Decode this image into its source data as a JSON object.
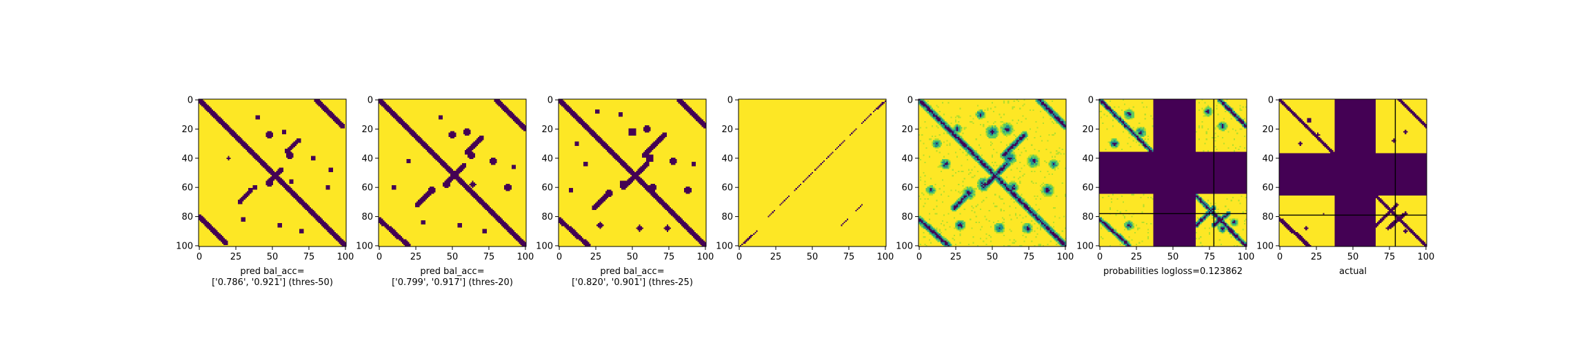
{
  "colors": {
    "dark": "#440154",
    "teal": "#21918c",
    "green": "#5ec962",
    "light_green": "#b5de2b",
    "yellow": "#fde725",
    "axis": "#000000"
  },
  "chart_data": [
    {
      "type": "heatmap",
      "id": "pred-thres-50",
      "rendering": "binary-mask",
      "xlabel": "pred bal_acc=\n['0.786', '0.921'] (thres-50)",
      "xlim": [
        0,
        101
      ],
      "ylim": [
        101,
        0
      ],
      "xticks": [
        0,
        25,
        50,
        75,
        100
      ],
      "yticks": [
        0,
        20,
        40,
        60,
        80,
        100
      ],
      "colormap": "viridis",
      "features": {
        "diagonal_band_width": 1.6,
        "anti_diagonal_segments": [
          [
            0,
            80,
            18,
            98
          ],
          [
            80,
            0,
            98,
            18
          ],
          [
            48,
            56,
            56,
            48
          ],
          [
            60,
            35,
            68,
            28
          ],
          [
            35,
            62,
            28,
            70
          ]
        ],
        "blobs": [
          [
            48,
            24,
            3
          ],
          [
            58,
            22,
            2.5
          ],
          [
            62,
            38,
            3
          ],
          [
            78,
            40,
            2.5
          ],
          [
            48,
            57,
            3
          ],
          [
            38,
            60,
            2.5
          ],
          [
            63,
            56,
            2.2
          ],
          [
            88,
            60,
            2.5
          ],
          [
            30,
            82,
            2
          ],
          [
            55,
            86,
            2
          ],
          [
            70,
            90,
            2
          ],
          [
            20,
            40,
            1.8
          ],
          [
            40,
            12,
            2
          ],
          [
            90,
            48,
            2
          ]
        ],
        "seed": 11
      }
    },
    {
      "type": "heatmap",
      "id": "pred-thres-20",
      "rendering": "binary-mask",
      "xlabel": "pred bal_acc=\n['0.799', '0.917'] (thres-20)",
      "xlim": [
        0,
        101
      ],
      "ylim": [
        101,
        0
      ],
      "xticks": [
        0,
        25,
        50,
        75,
        100
      ],
      "yticks": [
        0,
        20,
        40,
        60,
        80,
        100
      ],
      "colormap": "viridis",
      "features": {
        "diagonal_band_width": 1.8,
        "anti_diagonal_segments": [
          [
            0,
            82,
            20,
            100
          ],
          [
            80,
            0,
            100,
            20
          ],
          [
            45,
            58,
            58,
            45
          ],
          [
            60,
            36,
            70,
            26
          ],
          [
            34,
            64,
            26,
            72
          ]
        ],
        "blobs": [
          [
            50,
            24,
            3.5
          ],
          [
            60,
            22,
            3
          ],
          [
            63,
            38,
            3.5
          ],
          [
            78,
            42,
            3
          ],
          [
            46,
            58,
            3.5
          ],
          [
            36,
            62,
            3
          ],
          [
            64,
            58,
            2.8
          ],
          [
            88,
            60,
            3
          ],
          [
            30,
            84,
            2.5
          ],
          [
            55,
            86,
            2.5
          ],
          [
            72,
            90,
            2.5
          ],
          [
            20,
            42,
            2.2
          ],
          [
            42,
            12,
            2.4
          ],
          [
            92,
            46,
            2.4
          ],
          [
            10,
            60,
            2
          ]
        ],
        "seed": 23
      }
    },
    {
      "type": "heatmap",
      "id": "pred-thres-25",
      "rendering": "binary-mask",
      "xlabel": "pred bal_acc=\n['0.820', '0.901'] (thres-25)",
      "xlim": [
        0,
        101
      ],
      "ylim": [
        101,
        0
      ],
      "xticks": [
        0,
        25,
        50,
        75,
        100
      ],
      "yticks": [
        0,
        20,
        40,
        60,
        80,
        100
      ],
      "colormap": "viridis",
      "features": {
        "diagonal_band_width": 1.8,
        "anti_diagonal_segments": [
          [
            0,
            82,
            20,
            100
          ],
          [
            82,
            0,
            100,
            18
          ],
          [
            44,
            60,
            60,
            44
          ],
          [
            58,
            38,
            72,
            24
          ],
          [
            32,
            66,
            24,
            74
          ]
        ],
        "blobs": [
          [
            50,
            22,
            3.8
          ],
          [
            60,
            20,
            3.4
          ],
          [
            62,
            40,
            3.8
          ],
          [
            78,
            42,
            3.2
          ],
          [
            44,
            58,
            3.8
          ],
          [
            34,
            64,
            3.2
          ],
          [
            64,
            60,
            3
          ],
          [
            88,
            62,
            3.2
          ],
          [
            28,
            86,
            2.8
          ],
          [
            55,
            88,
            2.8
          ],
          [
            74,
            88,
            2.8
          ],
          [
            18,
            44,
            2.6
          ],
          [
            42,
            10,
            2.6
          ],
          [
            92,
            44,
            2.6
          ],
          [
            8,
            62,
            2.4
          ],
          [
            26,
            8,
            2.2
          ],
          [
            12,
            30,
            2.2
          ]
        ],
        "seed": 37
      }
    },
    {
      "type": "heatmap",
      "id": "thin-diagonal",
      "rendering": "sparse-lines",
      "xlabel": "",
      "xlim": [
        0,
        101
      ],
      "ylim": [
        101,
        0
      ],
      "xticks": [
        0,
        25,
        50,
        75,
        100
      ],
      "yticks": [
        0,
        20,
        40,
        60,
        80,
        100
      ],
      "colormap": "viridis",
      "features": {
        "segments": [
          [
            0,
            101,
            12,
            90
          ],
          [
            20,
            80,
            24,
            76
          ],
          [
            28,
            72,
            34,
            66
          ],
          [
            38,
            62,
            42,
            58
          ],
          [
            44,
            56,
            50,
            50
          ],
          [
            52,
            48,
            58,
            42
          ],
          [
            60,
            40,
            64,
            36
          ],
          [
            66,
            34,
            72,
            28
          ],
          [
            76,
            24,
            80,
            20
          ],
          [
            84,
            16,
            90,
            10
          ],
          [
            92,
            8,
            101,
            0
          ],
          [
            70,
            86,
            74,
            82
          ],
          [
            80,
            76,
            84,
            72
          ]
        ],
        "seed": 41
      }
    },
    {
      "type": "heatmap",
      "id": "continuous-prob",
      "rendering": "continuous",
      "xlabel": "",
      "xlim": [
        0,
        101
      ],
      "ylim": [
        101,
        0
      ],
      "xticks": [
        0,
        25,
        50,
        75,
        100
      ],
      "yticks": [
        0,
        20,
        40,
        60,
        80,
        100
      ],
      "colormap": "viridis",
      "features": {
        "diagonal_band_width": 2.5,
        "anti_diagonal_segments": [
          [
            0,
            82,
            20,
            100
          ],
          [
            82,
            0,
            100,
            18
          ],
          [
            44,
            60,
            60,
            44
          ],
          [
            58,
            38,
            72,
            24
          ],
          [
            32,
            66,
            24,
            74
          ]
        ],
        "blobs": [
          [
            50,
            22,
            5
          ],
          [
            60,
            20,
            4.5
          ],
          [
            62,
            40,
            5
          ],
          [
            78,
            42,
            4.5
          ],
          [
            44,
            58,
            5
          ],
          [
            34,
            64,
            4.5
          ],
          [
            64,
            60,
            4.2
          ],
          [
            88,
            62,
            4.5
          ],
          [
            28,
            86,
            4
          ],
          [
            55,
            88,
            4
          ],
          [
            74,
            88,
            4
          ],
          [
            18,
            44,
            4
          ],
          [
            42,
            10,
            3.6
          ],
          [
            92,
            44,
            3.6
          ],
          [
            8,
            62,
            3.4
          ],
          [
            12,
            30,
            3.4
          ],
          [
            26,
            20,
            3.5
          ]
        ],
        "seed": 53
      }
    },
    {
      "type": "heatmap",
      "id": "probabilities",
      "rendering": "continuous-masked",
      "xlabel": "probabilities logloss=0.123862",
      "xlim": [
        0,
        101
      ],
      "ylim": [
        101,
        0
      ],
      "xticks": [
        0,
        25,
        50,
        75,
        100
      ],
      "yticks": [
        0,
        20,
        40,
        60,
        80,
        100
      ],
      "colormap": "viridis",
      "features": {
        "mask_rows": [
          [
            36,
            64
          ]
        ],
        "mask_cols": [
          [
            37,
            65
          ]
        ],
        "grid_lines_h": [
          78
        ],
        "grid_lines_v": [
          78
        ],
        "diagonal_band_width": 2,
        "anti_diagonal_segments": [
          [
            0,
            82,
            20,
            100
          ],
          [
            82,
            0,
            100,
            18
          ],
          [
            66,
            86,
            78,
            74
          ],
          [
            78,
            86,
            88,
            78
          ]
        ],
        "blobs": [
          [
            20,
            10,
            4
          ],
          [
            28,
            22,
            4
          ],
          [
            10,
            30,
            3.6
          ],
          [
            84,
            18,
            3.6
          ],
          [
            74,
            8,
            3.4
          ],
          [
            20,
            86,
            3.6
          ],
          [
            84,
            88,
            3.6
          ],
          [
            92,
            84,
            3
          ]
        ],
        "seed": 67
      }
    },
    {
      "type": "heatmap",
      "id": "actual",
      "rendering": "binary-masked",
      "xlabel": "actual",
      "xlim": [
        0,
        101
      ],
      "ylim": [
        101,
        0
      ],
      "xticks": [
        0,
        25,
        50,
        75,
        100
      ],
      "yticks": [
        0,
        20,
        40,
        60,
        80,
        100
      ],
      "colormap": "viridis",
      "features": {
        "mask_rows": [
          [
            37,
            65
          ]
        ],
        "mask_cols": [
          [
            38,
            65
          ]
        ],
        "grid_lines_h": [
          79
        ],
        "grid_lines_v": [
          79
        ],
        "diagonal_band_width": 1.5,
        "anti_diagonal_segments": [
          [
            0,
            82,
            20,
            100
          ],
          [
            82,
            0,
            100,
            18
          ],
          [
            66,
            86,
            80,
            72
          ],
          [
            74,
            88,
            86,
            78
          ]
        ],
        "blobs": [
          [
            20,
            14,
            2
          ],
          [
            26,
            24,
            1.8
          ],
          [
            14,
            30,
            1.6
          ],
          [
            86,
            22,
            1.8
          ],
          [
            78,
            28,
            1.4
          ],
          [
            18,
            88,
            1.6
          ],
          [
            86,
            90,
            1.6
          ],
          [
            30,
            78,
            1.2
          ]
        ],
        "seed": 79
      }
    }
  ]
}
